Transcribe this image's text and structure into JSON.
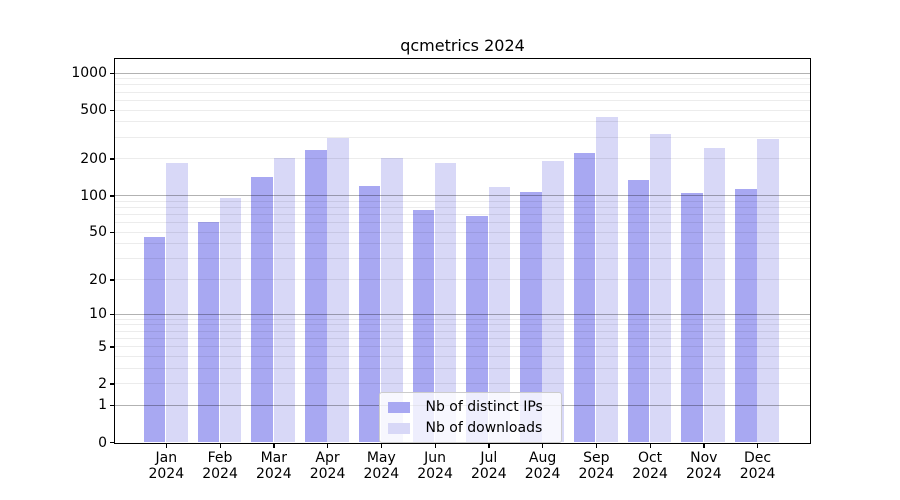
{
  "chart_data": {
    "type": "bar",
    "title": "qcmetrics 2024",
    "categories": [
      "Jan",
      "Feb",
      "Mar",
      "Apr",
      "May",
      "Jun",
      "Jul",
      "Aug",
      "Sep",
      "Oct",
      "Nov",
      "Dec"
    ],
    "category_year": "2024",
    "series": [
      {
        "name": "Nb of distinct IPs",
        "color": "#a8a8f2",
        "values": [
          45,
          60,
          140,
          234,
          120,
          75,
          68,
          107,
          223,
          132,
          104,
          113
        ]
      },
      {
        "name": "Nb of downloads",
        "color": "#d8d8f7",
        "values": [
          183,
          94,
          203,
          295,
          202,
          185,
          117,
          192,
          436,
          318,
          242,
          288
        ]
      }
    ],
    "y_axis": {
      "scale": "log1p",
      "ticks": [
        0,
        1,
        2,
        5,
        10,
        20,
        50,
        100,
        200,
        500,
        1000
      ],
      "max": 1288
    },
    "grid": {
      "on": true,
      "major_values": [
        1,
        10,
        100,
        1000
      ],
      "minor_subs": [
        2,
        3,
        4,
        5,
        6,
        7,
        8,
        9
      ],
      "minor_decades": [
        1,
        10,
        100
      ]
    },
    "legend": {
      "position": "lower-center"
    }
  }
}
